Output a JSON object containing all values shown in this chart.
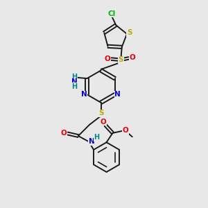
{
  "background_color": "#e8e8e8",
  "bond_color": "#1a1a1a",
  "atom_colors": {
    "C": "#1a1a1a",
    "N": "#0000ee",
    "O": "#ee0000",
    "S": "#bbaa00",
    "Cl": "#00bb00",
    "H": "#008888"
  },
  "figsize": [
    3.0,
    3.0
  ],
  "dpi": 100
}
